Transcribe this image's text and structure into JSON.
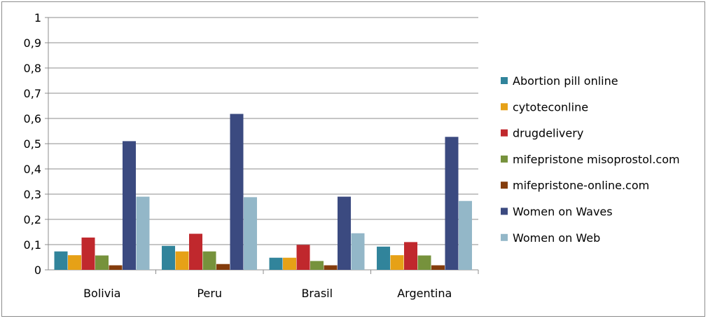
{
  "chart_data": {
    "type": "bar",
    "title": "",
    "xlabel": "",
    "ylabel": "",
    "categories": [
      "Bolivia",
      "Peru",
      "Brasil",
      "Argentina"
    ],
    "ylim": [
      0,
      1
    ],
    "yticks": [
      "0",
      "0,1",
      "0,2",
      "0,3",
      "0,4",
      "0,5",
      "0,6",
      "0,7",
      "0,8",
      "0,9",
      "1"
    ],
    "grid": true,
    "legend_position": "right",
    "series": [
      {
        "name": "Abortion pill online",
        "color": "#31849b",
        "values": [
          0.073,
          0.095,
          0.048,
          0.092
        ]
      },
      {
        "name": "cytoteconline",
        "color": "#e6a117",
        "values": [
          0.058,
          0.073,
          0.048,
          0.058
        ]
      },
      {
        "name": "drugdelivery",
        "color": "#c0282d",
        "values": [
          0.128,
          0.143,
          0.099,
          0.11
        ]
      },
      {
        "name": "mifepristone misoprostol.com",
        "color": "#76923c",
        "values": [
          0.057,
          0.073,
          0.035,
          0.057
        ]
      },
      {
        "name": "mifepristone-online.com",
        "color": "#843c0c",
        "values": [
          0.018,
          0.023,
          0.018,
          0.018
        ]
      },
      {
        "name": "Women on Waves",
        "color": "#3b4a80",
        "values": [
          0.51,
          0.618,
          0.29,
          0.527
        ]
      },
      {
        "name": "Women on Web",
        "color": "#93b7c8",
        "values": [
          0.29,
          0.288,
          0.145,
          0.273
        ]
      }
    ]
  }
}
